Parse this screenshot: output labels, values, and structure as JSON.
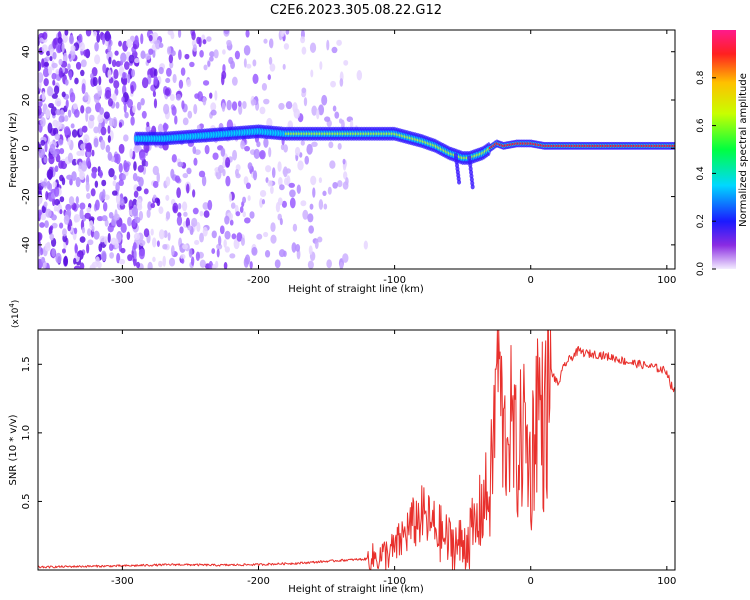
{
  "page": {
    "title": "C2E6.2023.305.08.22.G12"
  },
  "chart_data": [
    {
      "type": "heatmap",
      "xlabel": "Height of straight line (km)",
      "ylabel": "Frequency (Hz)",
      "xlim": [
        -362,
        106
      ],
      "ylim": [
        -50,
        49
      ],
      "xticks": [
        -300,
        -200,
        -100,
        0,
        100
      ],
      "xtick_labels": [
        "-300",
        "-200",
        "-100",
        "0",
        "100"
      ],
      "yticks": [
        -40,
        -20,
        0,
        20,
        40
      ],
      "ytick_labels": [
        "-40",
        "-20",
        "0",
        "20",
        "40"
      ],
      "colorbar": {
        "label": "Normalized spectral amplitude",
        "range": [
          0,
          1
        ],
        "ticks": [
          0.0,
          0.2,
          0.4,
          0.6,
          0.8
        ],
        "tick_labels": [
          "0.0",
          "0.2",
          "0.4",
          "0.6",
          "0.8"
        ]
      },
      "ridge": {
        "x": [
          -290,
          -270,
          -200,
          -180,
          -160,
          -140,
          -120,
          -100,
          -80,
          -70,
          -60,
          -50,
          -45,
          -40,
          -35,
          -30,
          -25,
          -20,
          -10,
          0,
          10,
          20,
          50,
          80,
          106
        ],
        "frequency": [
          4,
          4,
          7,
          6,
          6,
          6,
          6,
          6,
          3,
          1,
          -2,
          -4,
          -4,
          -3,
          -2,
          0,
          2,
          1,
          2,
          2,
          1,
          1,
          1,
          1,
          1
        ]
      }
    },
    {
      "type": "line",
      "xlabel": "Height of straight line (km)",
      "ylabel": "SNR (10 * v/v)",
      "scale_label": "(x10",
      "scale_exponent": "4",
      "scale_suffix": ")",
      "xlim": [
        -362,
        106
      ],
      "ylim": [
        0,
        1.75
      ],
      "xticks": [
        -300,
        -200,
        -100,
        0,
        100
      ],
      "xtick_labels": [
        "-300",
        "-200",
        "-100",
        "0",
        "100"
      ],
      "yticks": [
        0.5,
        1.0,
        1.5
      ],
      "ytick_labels": [
        "0.5",
        "1.0",
        "1.5"
      ],
      "series": [
        {
          "color": "#e8302c",
          "x": [
            -362,
            -340,
            -300,
            -260,
            -230,
            -200,
            -170,
            -140,
            -120,
            -110,
            -100,
            -90,
            -80,
            -70,
            -60,
            -50,
            -45,
            -40,
            -35,
            -30,
            -27,
            -24,
            -20,
            -15,
            -10,
            -5,
            0,
            5,
            10,
            15,
            20,
            25,
            30,
            35,
            40,
            50,
            60,
            70,
            80,
            90,
            100,
            103,
            106
          ],
          "y": [
            0.02,
            0.025,
            0.03,
            0.04,
            0.035,
            0.04,
            0.05,
            0.07,
            0.08,
            0.1,
            0.15,
            0.3,
            0.4,
            0.3,
            0.2,
            0.18,
            0.25,
            0.3,
            0.5,
            0.55,
            1.0,
            1.7,
            0.9,
            1.1,
            0.8,
            1.05,
            0.7,
            1.3,
            1.0,
            1.45,
            1.35,
            1.5,
            1.55,
            1.6,
            1.58,
            1.57,
            1.55,
            1.52,
            1.5,
            1.48,
            1.45,
            1.35,
            1.3
          ]
        }
      ]
    }
  ]
}
